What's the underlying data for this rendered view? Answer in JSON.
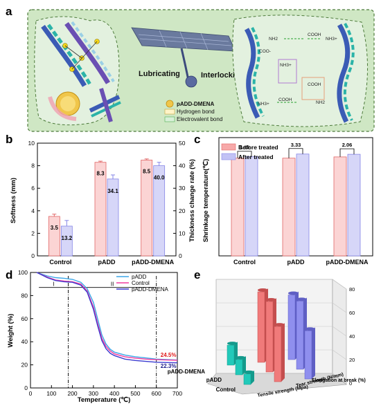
{
  "panel_labels": {
    "a": "a",
    "b": "b",
    "c": "c",
    "d": "d",
    "e": "e"
  },
  "panel_a": {
    "center_left": "Lubricating",
    "center_right": "Interlocking",
    "legend": [
      "pADD-DMENA",
      "Hydrogen bond",
      "Electrovalent bond"
    ],
    "chem_labels": [
      "NH2",
      "COOH",
      "NH3+",
      "COO-",
      "NH3+",
      "COOH",
      "COOH",
      "NH3+",
      "NH2"
    ]
  },
  "colors": {
    "red": "#f07a7a",
    "blue": "#8f8fee",
    "teal": "#22c9b9",
    "panel_a_bg": "#cfe7c4"
  },
  "chart_data": [
    {
      "type": "bar",
      "panel": "b",
      "categories": [
        "Control",
        "pADD",
        "pADD-DMENA"
      ],
      "ylabel": "Softness (mm)",
      "y2label": "Thickness change rate (%)",
      "ylim": [
        0,
        10
      ],
      "y2lim": [
        0,
        50
      ],
      "yticks": [
        "0",
        "2",
        "4",
        "6",
        "8",
        "10"
      ],
      "y2ticks": [
        "0",
        "10",
        "20",
        "30",
        "40",
        "50"
      ],
      "series": [
        {
          "axis": "left",
          "values": [
            3.5,
            8.3,
            8.5
          ],
          "errors": [
            0.2,
            0.1,
            0.1
          ],
          "labels": [
            "3.5",
            "8.3",
            "8.5"
          ]
        },
        {
          "axis": "right",
          "values": [
            13.2,
            34.1,
            40.0
          ],
          "errors": [
            2.5,
            1.8,
            1.5
          ],
          "labels": [
            "13.2",
            "34.1",
            "40.0"
          ]
        }
      ]
    },
    {
      "type": "bar",
      "panel": "c",
      "categories": [
        "Control",
        "pADD",
        "pADD-DMENA"
      ],
      "ylabel": "Shrinkage temperature(℃)",
      "ylim": [
        0,
        95
      ],
      "series": [
        {
          "name": "Before treated",
          "values": [
            78.5,
            78.5,
            79.5
          ]
        },
        {
          "name": "After treated",
          "values": [
            79.6,
            81.8,
            81.6
          ]
        }
      ],
      "differences": [
        "1.10",
        "3.33",
        "2.06"
      ]
    },
    {
      "type": "line",
      "panel": "d",
      "xlabel": "Temperature (℃)",
      "ylabel": "Weight (%)",
      "xlim": [
        0,
        700
      ],
      "ylim": [
        0,
        100
      ],
      "xticks": [
        "0",
        "100",
        "200",
        "300",
        "400",
        "500",
        "600",
        "700"
      ],
      "yticks": [
        "0",
        "20",
        "40",
        "60",
        "80",
        "100"
      ],
      "series": [
        {
          "name": "pADD",
          "x": [
            30,
            80,
            120,
            160,
            200,
            240,
            270,
            300,
            320,
            340,
            360,
            380,
            400,
            450,
            500,
            550,
            600,
            650,
            700
          ],
          "y": [
            100,
            97,
            95.5,
            95,
            94,
            91.5,
            86,
            74,
            60,
            46,
            38,
            33.5,
            31,
            28.5,
            27,
            26,
            25,
            24.6,
            24.2
          ]
        },
        {
          "name": "Control",
          "x": [
            30,
            80,
            120,
            160,
            200,
            240,
            270,
            300,
            320,
            340,
            360,
            380,
            400,
            450,
            500,
            550,
            600,
            650,
            700
          ],
          "y": [
            100,
            96,
            93.5,
            92.5,
            92,
            90,
            84,
            70,
            56,
            43,
            36,
            32,
            29.5,
            27,
            25.8,
            25,
            24.5,
            24.2,
            24
          ]
        },
        {
          "name": "pADD-DMENA",
          "x": [
            30,
            80,
            120,
            160,
            200,
            240,
            270,
            300,
            320,
            340,
            360,
            380,
            400,
            450,
            500,
            550,
            600,
            650,
            700
          ],
          "y": [
            100,
            95.5,
            93,
            92,
            91.5,
            89,
            83,
            68,
            54,
            41,
            34,
            30,
            28,
            25,
            23.8,
            23,
            22.3,
            22,
            21.8
          ]
        }
      ],
      "regions": [
        "I",
        "II"
      ],
      "annotations": [
        {
          "text": "24.5%",
          "color": "#e01818"
        },
        {
          "text": "22.3%",
          "color": "#1a1a8a"
        }
      ]
    },
    {
      "type": "bar3d",
      "panel": "e",
      "categories": [
        "Control",
        "pADD",
        "pADD-DMENA"
      ],
      "metrics": [
        "Tensile strength (Mpa)",
        "Tear strength (N/mm)",
        "Elongation at break (%)"
      ],
      "zlim": [
        0,
        80
      ],
      "zticks": [
        "0",
        "20",
        "40",
        "60",
        "80"
      ],
      "values": {
        "Tensile strength (Mpa)": [
          9,
          13,
          17
        ],
        "Tear strength (N/mm)": [
          47,
          60,
          60
        ],
        "Elongation at break (%)": [
          41,
          58,
          55
        ]
      }
    }
  ]
}
